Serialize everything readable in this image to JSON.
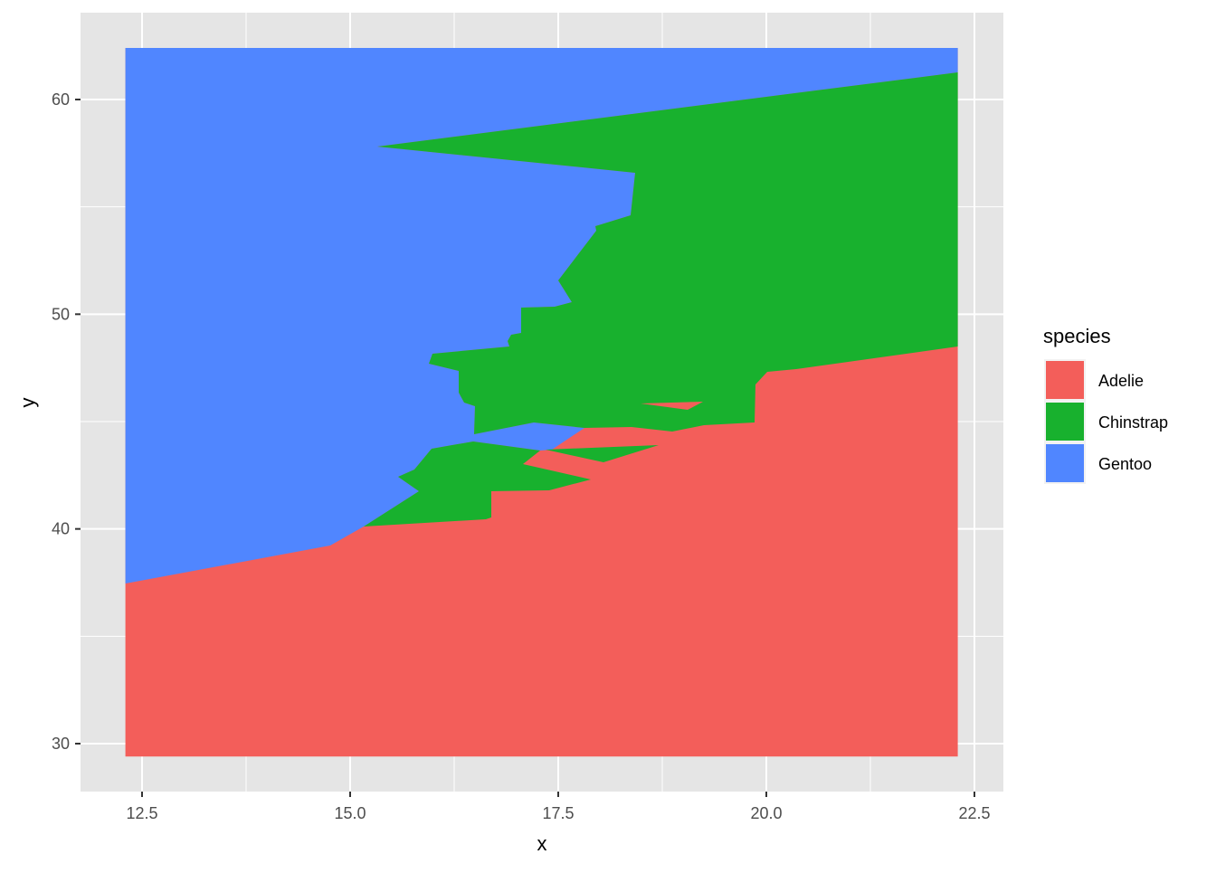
{
  "chart_data": {
    "type": "voronoi-tessellation",
    "title": "",
    "xlabel": "x",
    "ylabel": "y",
    "xlim": [
      11.75,
      23.15
    ],
    "ylim": [
      27.8,
      62.5
    ],
    "x_ticks": [
      12.5,
      15.0,
      17.5,
      20.0,
      22.5
    ],
    "x_tick_labels": [
      "12.5",
      "15.0",
      "17.5",
      "20.0",
      "22.5"
    ],
    "y_ticks": [
      30,
      40,
      50,
      60
    ],
    "y_tick_labels": [
      "30",
      "40",
      "50",
      "60"
    ],
    "data_extent": {
      "x": [
        12.3,
        22.3
      ],
      "y": [
        29.4,
        62.4
      ]
    },
    "grid": true,
    "legend": {
      "title": "species",
      "position": "right",
      "entries": [
        {
          "label": "Adelie",
          "color": "#F35E5A"
        },
        {
          "label": "Chinstrap",
          "color": "#18B12E"
        },
        {
          "label": "Gentoo",
          "color": "#5086FF"
        }
      ]
    },
    "panel_background": "#E5E5E5"
  }
}
